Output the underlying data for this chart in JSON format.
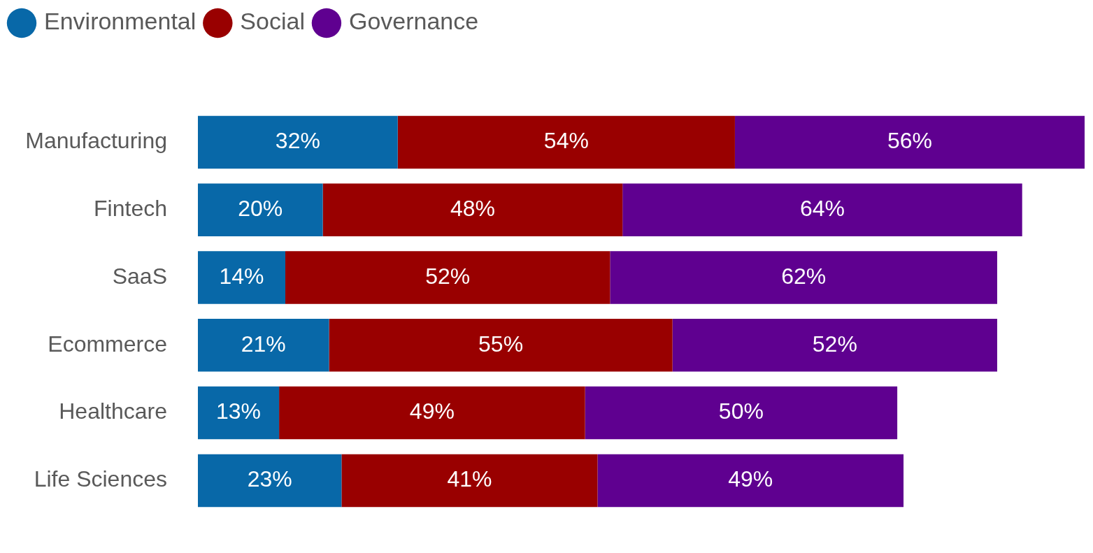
{
  "chart_data": {
    "type": "bar",
    "orientation": "horizontal",
    "stacked": true,
    "legend": "top left",
    "tick_labels": "y",
    "categories": [
      "Manufacturing",
      "Fintech",
      "SaaS",
      "Ecommerce",
      "Healthcare",
      "Life Sciences"
    ],
    "series": [
      {
        "name": "Environmental",
        "color": "#0868a8",
        "values": [
          32,
          20,
          14,
          21,
          13,
          23
        ],
        "value_labels": [
          "32%",
          "20%",
          "14%",
          "21%",
          "13%",
          "23%"
        ]
      },
      {
        "name": "Social",
        "color": "#990000",
        "values": [
          54,
          48,
          52,
          55,
          49,
          41
        ],
        "value_labels": [
          "54%",
          "48%",
          "52%",
          "55%",
          "49%",
          "41%"
        ]
      },
      {
        "name": "Governance",
        "color": "#5f0090",
        "values": [
          56,
          64,
          62,
          52,
          50,
          49
        ],
        "value_labels": [
          "56%",
          "64%",
          "62%",
          "52%",
          "50%",
          "49%"
        ]
      }
    ]
  }
}
